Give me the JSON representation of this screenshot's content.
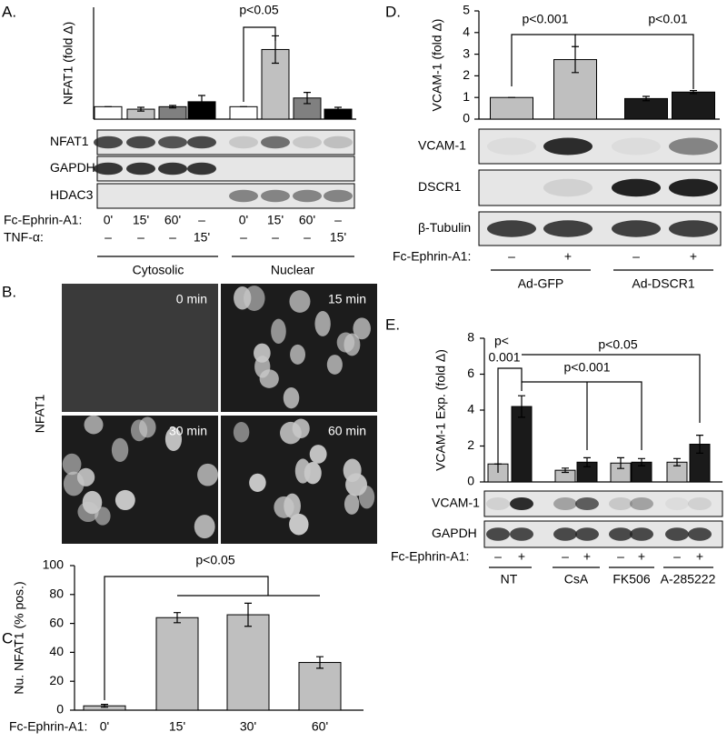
{
  "panel_labels": [
    "A.",
    "B.",
    "C.",
    "D.",
    "E."
  ],
  "chart_data": [
    {
      "type": "bar",
      "ylabel": "NFAT1 (fold Δ)",
      "values": [
        1,
        0.8,
        1.0,
        1.4,
        1,
        5.6,
        1.7,
        0.8
      ],
      "errors": [
        0,
        0.15,
        0.1,
        0.5,
        0,
        1.1,
        0.45,
        0.15
      ],
      "colors": [
        "#ffffff",
        "#c0c0c0",
        "#808080",
        "#000000",
        "#ffffff",
        "#c0c0c0",
        "#808080",
        "#000000"
      ],
      "ylim": [
        0,
        9
      ],
      "annotations": [
        "p<0.05"
      ]
    },
    {
      "type": "bar",
      "ylabel": "Nu. NFAT1 (% pos.)",
      "xlabel": "Fc-Ephrin-A1:",
      "categories": [
        "0'",
        "15'",
        "30'",
        "60'"
      ],
      "values": [
        3,
        64,
        66,
        33
      ],
      "errors": [
        1,
        3.5,
        8,
        4
      ],
      "colors": [
        "#bfbfbf",
        "#bfbfbf",
        "#bfbfbf",
        "#bfbfbf"
      ],
      "ylim": [
        0,
        100
      ],
      "yticks": [
        0,
        20,
        40,
        60,
        80,
        100
      ],
      "annotations": [
        "p<0.05"
      ]
    },
    {
      "type": "bar",
      "ylabel": "VCAM-1 (fold Δ)",
      "values": [
        1,
        2.75,
        0.95,
        1.25
      ],
      "errors": [
        0,
        0.6,
        0.1,
        0.07
      ],
      "colors": [
        "#bfbfbf",
        "#bfbfbf",
        "#1a1a1a",
        "#1a1a1a"
      ],
      "ylim": [
        0,
        5
      ],
      "yticks": [
        0,
        1,
        2,
        3,
        4,
        5
      ],
      "annotations": [
        "p<0.001",
        "p<0.01"
      ]
    },
    {
      "type": "bar",
      "ylabel": "VCAM-1 Exp. (fold Δ)",
      "values": [
        1,
        4.2,
        0.65,
        1.1,
        1.05,
        1.1,
        1.1,
        2.1
      ],
      "errors": [
        0,
        0.6,
        0.12,
        0.25,
        0.3,
        0.2,
        0.2,
        0.5
      ],
      "colors": [
        "#bfbfbf",
        "#1a1a1a",
        "#bfbfbf",
        "#1a1a1a",
        "#bfbfbf",
        "#1a1a1a",
        "#bfbfbf",
        "#1a1a1a"
      ],
      "ylim": [
        0,
        8
      ],
      "yticks": [
        0,
        2,
        4,
        6,
        8
      ],
      "annotations": [
        "p<",
        "0.001",
        "p<0.001",
        "p<0.05"
      ]
    }
  ],
  "blots": [
    {
      "rows": [
        "NFAT1",
        "GAPDH",
        "HDAC3"
      ],
      "lane_rows": [
        {
          "label": "Fc-Ephrin-A1:",
          "lanes": [
            "0'",
            "15'",
            "60'",
            "–",
            "0'",
            "15'",
            "60'",
            "–"
          ]
        },
        {
          "label": "TNF-α:",
          "lanes": [
            "–",
            "–",
            "–",
            "15'",
            "–",
            "–",
            "–",
            "15'"
          ]
        }
      ],
      "groups": [
        "Cytosolic",
        "Nuclear"
      ]
    },
    {
      "rows": [
        "VCAM-1",
        "DSCR1",
        "β-Tubulin"
      ],
      "lane_rows": [
        {
          "label": "Fc-Ephrin-A1:",
          "lanes": [
            "–",
            "+",
            "–",
            "+"
          ]
        }
      ],
      "groups": [
        "Ad-GFP",
        "Ad-DSCR1"
      ]
    },
    {
      "rows": [
        "VCAM-1",
        "GAPDH"
      ],
      "lane_rows": [
        {
          "label": "Fc-Ephrin-A1:",
          "lanes": [
            "–",
            "+",
            "–",
            "+",
            "–",
            "+",
            "–",
            "+"
          ]
        }
      ],
      "groups": [
        "NT",
        "CsA",
        "FK506",
        "A-285222"
      ]
    }
  ],
  "microscopy": {
    "label": "NFAT1",
    "times": [
      "0 min",
      "15 min",
      "30 min",
      "60 min"
    ]
  }
}
